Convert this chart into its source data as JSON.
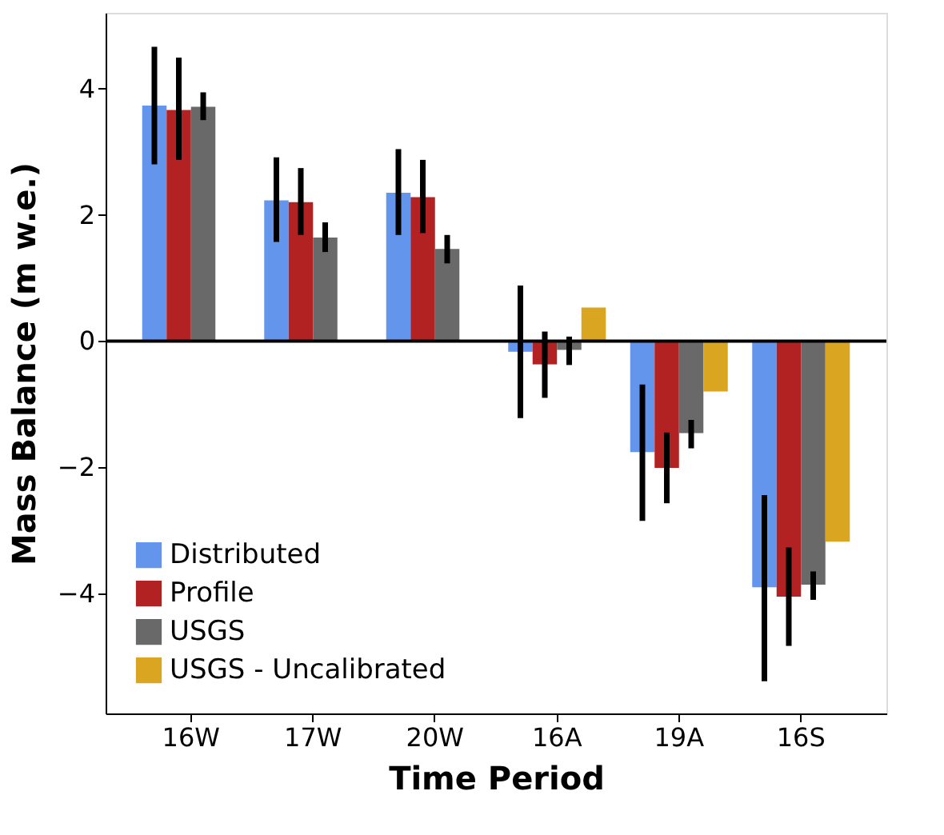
{
  "chart_data": {
    "type": "bar",
    "xlabel": "Time Period",
    "ylabel": "Mass Balance (m w.e.)",
    "categories": [
      "16W",
      "17W",
      "20W",
      "16A",
      "19A",
      "16S"
    ],
    "series": [
      {
        "name": "Distributed",
        "color": "#6495ed",
        "values": [
          3.73,
          2.23,
          2.35,
          -0.17,
          -1.76,
          -3.9
        ],
        "errors": [
          [
            2.8,
            4.66
          ],
          [
            1.57,
            2.91
          ],
          [
            1.68,
            3.04
          ],
          [
            -1.22,
            0.88
          ],
          [
            -2.85,
            -0.69
          ],
          [
            -5.39,
            -2.44
          ]
        ]
      },
      {
        "name": "Profile",
        "color": "#b22222",
        "values": [
          3.66,
          2.2,
          2.28,
          -0.37,
          -2.01,
          -4.05
        ],
        "errors": [
          [
            2.87,
            4.49
          ],
          [
            1.68,
            2.74
          ],
          [
            1.71,
            2.87
          ],
          [
            -0.9,
            0.15
          ],
          [
            -2.57,
            -1.45
          ],
          [
            -4.83,
            -3.27
          ]
        ]
      },
      {
        "name": "USGS",
        "color": "#696969",
        "values": [
          3.71,
          1.64,
          1.46,
          -0.14,
          -1.46,
          -3.86
        ],
        "errors": [
          [
            3.5,
            3.94
          ],
          [
            1.41,
            1.88
          ],
          [
            1.23,
            1.68
          ],
          [
            -0.38,
            0.07
          ],
          [
            -1.7,
            -1.25
          ],
          [
            -4.1,
            -3.65
          ]
        ]
      },
      {
        "name": "USGS - Uncalibrated",
        "color": "#daa520",
        "values": [
          null,
          null,
          null,
          0.53,
          -0.8,
          -3.18
        ]
      }
    ],
    "ylim": [
      -5.9,
      5.2
    ],
    "yticks": [
      -4,
      -2,
      0,
      2,
      4
    ],
    "grid": false,
    "legend": "bottom left",
    "ref_lines": [
      {
        "axis": "y",
        "value": 0,
        "color": "#000000",
        "line_style": "solid"
      }
    ]
  }
}
